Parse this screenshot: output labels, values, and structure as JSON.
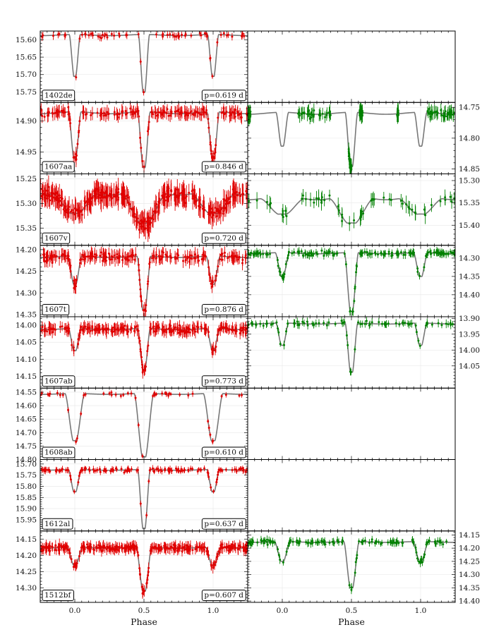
{
  "chart_data": {
    "type": "scatter",
    "description_layout": "light-curve grid",
    "x_range": [
      -0.25,
      1.25
    ],
    "xlabel": "Phase",
    "x_ticks": [
      0.0,
      0.5,
      1.0
    ],
    "x_tick_labels": [
      "0.0",
      "0.5",
      "1.0"
    ],
    "grid": true,
    "y_axis_inverted": true,
    "colors": {
      "left_points": "#e00000",
      "right_points": "#008000",
      "model": "#777777"
    },
    "rows": [
      {
        "star": "1402de",
        "period": "p=0.619 d",
        "left": {
          "ylim": [
            15.575,
            15.78
          ],
          "ticks": [
            15.6,
            15.65,
            15.7,
            15.75
          ],
          "tick_labels": [
            "15.60",
            "15.65",
            "15.70",
            "15.75"
          ],
          "base": 15.585,
          "prim_depth": 0.165,
          "sec_depth": 0.12,
          "width": 0.04,
          "scatter": 0.006,
          "n": 70
        },
        "right": null
      },
      {
        "star": "1607aa",
        "period": "p=0.846 d",
        "left": {
          "ylim": [
            14.87,
            14.985
          ],
          "ticks": [
            14.9,
            14.95
          ],
          "tick_labels": [
            "14.90",
            "14.95"
          ],
          "base": 14.885,
          "prim_depth": 0.09,
          "sec_depth": 0.075,
          "width": 0.045,
          "scatter": 0.006,
          "n": 200
        },
        "right": {
          "ylim": [
            14.742,
            14.858
          ],
          "ticks": [
            14.75,
            14.8,
            14.85
          ],
          "tick_labels": [
            "14.75",
            "14.80",
            "14.85"
          ],
          "base": 14.758,
          "prim_depth": 0.088,
          "sec_depth": 0.055,
          "width": 0.045,
          "scatter": 0.006,
          "n": 220,
          "coverage": [
            [
              -0.25,
              -0.23
            ],
            [
              0.1,
              0.35
            ],
            [
              0.48,
              0.5
            ],
            [
              0.56,
              0.58
            ],
            [
              0.83,
              0.84
            ],
            [
              1.05,
              1.25
            ]
          ]
        }
      },
      {
        "star": "1607v",
        "period": "p=0.720 d",
        "left": {
          "ylim": [
            15.24,
            15.385
          ],
          "ticks": [
            15.25,
            15.3,
            15.35
          ],
          "tick_labels": [
            "15.25",
            "15.30",
            "15.35"
          ],
          "base": 15.275,
          "prim_depth": 0.065,
          "sec_depth": 0.045,
          "width": 0.16,
          "scatter": 0.012,
          "n": 360
        },
        "right": {
          "ylim": [
            15.285,
            15.445
          ],
          "ticks": [
            15.3,
            15.35,
            15.4
          ],
          "tick_labels": [
            "15.30",
            "15.35",
            "15.40"
          ],
          "base": 15.335,
          "prim_depth": 0.06,
          "sec_depth": 0.04,
          "width": 0.16,
          "scatter": 0.01,
          "n": 60
        }
      },
      {
        "star": "1607t",
        "period": "p=0.876 d",
        "left": {
          "ylim": [
            14.19,
            14.355
          ],
          "ticks": [
            14.2,
            14.25,
            14.3,
            14.35
          ],
          "tick_labels": [
            "14.20",
            "14.25",
            "14.30",
            "14.35"
          ],
          "base": 14.215,
          "prim_depth": 0.125,
          "sec_depth": 0.065,
          "width": 0.05,
          "scatter": 0.009,
          "n": 220
        },
        "right": {
          "ylim": [
            14.265,
            14.46
          ],
          "ticks": [
            14.3,
            14.35,
            14.4
          ],
          "tick_labels": [
            "14.30",
            "14.35",
            "14.40"
          ],
          "base": 14.285,
          "prim_depth": 0.16,
          "sec_depth": 0.065,
          "width": 0.05,
          "scatter": 0.006,
          "n": 170
        }
      },
      {
        "star": "1607ab",
        "period": "p=0.773 d",
        "left": {
          "ylim": [
            13.975,
            14.185
          ],
          "ticks": [
            14.0,
            14.05,
            14.1,
            14.15
          ],
          "tick_labels": [
            "14.00",
            "14.05",
            "14.10",
            "14.15"
          ],
          "base": 14.01,
          "prim_depth": 0.12,
          "sec_depth": 0.065,
          "width": 0.045,
          "scatter": 0.01,
          "n": 260
        },
        "right": {
          "ylim": [
            13.895,
            14.12
          ],
          "ticks": [
            13.9,
            13.95,
            14.0,
            14.05
          ],
          "tick_labels": [
            "13.90",
            "13.95",
            "14.00",
            "14.05"
          ],
          "base": 13.915,
          "prim_depth": 0.155,
          "sec_depth": 0.07,
          "width": 0.045,
          "scatter": 0.007,
          "n": 90
        }
      },
      {
        "star": "1608ab",
        "period": "p=0.610 d",
        "left": {
          "ylim": [
            14.535,
            14.8
          ],
          "ticks": [
            14.55,
            14.6,
            14.65,
            14.7,
            14.75,
            14.8
          ],
          "tick_labels": [
            "14.55",
            "14.60",
            "14.65",
            "14.70",
            "14.75",
            "14.80"
          ],
          "base": 14.555,
          "prim_depth": 0.235,
          "sec_depth": 0.175,
          "width": 0.07,
          "scatter": 0.006,
          "n": 50
        },
        "right": null
      },
      {
        "star": "1612al",
        "period": "p=0.637 d",
        "left": {
          "ylim": [
            15.68,
            16.0
          ],
          "ticks": [
            15.7,
            15.75,
            15.8,
            15.85,
            15.9,
            15.95
          ],
          "tick_labels": [
            "15.70",
            "15.75",
            "15.80",
            "15.85",
            "15.90",
            "15.95"
          ],
          "base": 15.725,
          "prim_depth": 0.265,
          "sec_depth": 0.1,
          "width": 0.045,
          "scatter": 0.008,
          "n": 140
        },
        "right": null
      },
      {
        "star": "1512bf",
        "period": "p=0.607 d",
        "left": {
          "ylim": [
            14.125,
            14.345
          ],
          "ticks": [
            14.15,
            14.2,
            14.25,
            14.3
          ],
          "tick_labels": [
            "14.15",
            "14.20",
            "14.25",
            "14.30"
          ],
          "base": 14.175,
          "prim_depth": 0.135,
          "sec_depth": 0.055,
          "width": 0.055,
          "scatter": 0.009,
          "n": 320
        },
        "right": {
          "ylim": [
            14.135,
            14.405
          ],
          "ticks": [
            14.15,
            14.2,
            14.25,
            14.3,
            14.35,
            14.4
          ],
          "tick_labels": [
            "14.15",
            "14.20",
            "14.25",
            "14.30",
            "14.35",
            "14.40"
          ],
          "base": 14.175,
          "prim_depth": 0.175,
          "sec_depth": 0.075,
          "width": 0.055,
          "scatter": 0.008,
          "n": 140
        }
      }
    ]
  }
}
